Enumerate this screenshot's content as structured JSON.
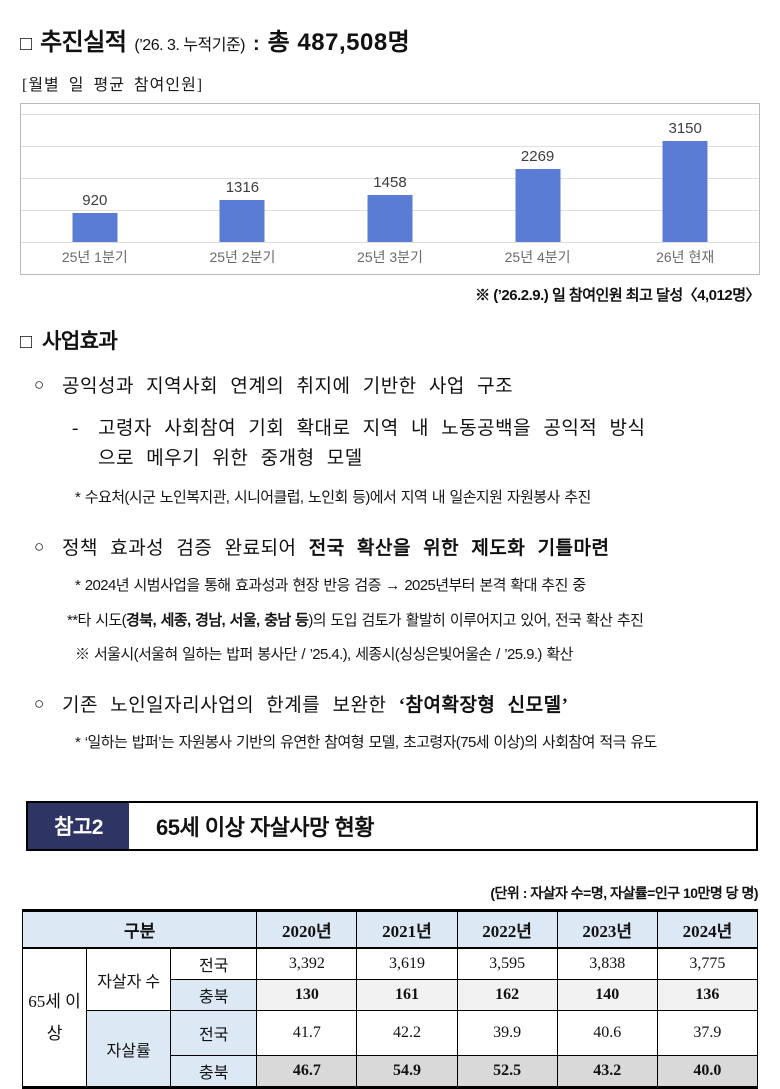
{
  "header": {
    "marker": "□",
    "title": "추진실적",
    "basis": "(’26. 3. 누적기준)",
    "colon": ":",
    "total": "총 487,508명"
  },
  "chart_caption": "[월별 일 평균 참여인원]",
  "chart_data": {
    "type": "bar",
    "title": "월별 일 평균 참여인원",
    "categories": [
      "25년 1분기",
      "25년 2분기",
      "25년 3분기",
      "25년 4분기",
      "26년 현재"
    ],
    "values": [
      920,
      1316,
      1458,
      2269,
      3150
    ],
    "xlabel": "",
    "ylabel": "",
    "ylim": [
      0,
      4000
    ],
    "gridline_step": 1000,
    "grid": "on",
    "legend": "none",
    "bar_color": "#5b7cd4"
  },
  "chart_note": "※  (’26.2.9.) 일 참여인원 최고 달성〈4,012명〉",
  "effects": {
    "marker": "□",
    "heading": "사업효과",
    "bullet1": {
      "marker": "○",
      "text": "공익성과 지역사회 연계의 취지에 기반한 사업 구조"
    },
    "bullet1_sub": {
      "marker": "-",
      "line1": "고령자 사회참여 기회 확대로 지역 내 노동공백을 공익적 방식",
      "line2": "으로 메우기 위한 중개형 모델"
    },
    "bullet1_note": "* 수요처(시군 노인복지관, 시니어클럽, 노인회 등)에서 지역 내 일손지원 자원봉사 추진",
    "bullet2": {
      "marker": "○",
      "text": "정책 효과성 검증 완료되어 ",
      "text_bold": "전국 확산을 위한 제도화 기틀마련"
    },
    "bullet2_note1": "* 2024년 시범사업을 통해 효과성과 현장 반응 검증 → 2025년부터 본격 확대 추진 중",
    "bullet2_note2": {
      "prefix": "**타 시도(",
      "bold": "경북, 세종, 경남, 서울, 충남 등",
      "suffix": ")의 도입 검토가 활발히 이루어지고 있어, 전국 확산 추진"
    },
    "bullet2_note3": "※ 서울시(서울혀 일하는 밥퍼 봉사단 / ’25.4.), 세종시(싱싱은빛어울손 / ’25.9.) 확산",
    "bullet3": {
      "marker": "○",
      "text": "기존 노인일자리사업의 한계를 보완한 ",
      "text_bold": "‘참여확장형 신모델’"
    },
    "bullet3_note": "* ‘일하는 밥퍼’는 자원봉사 기반의 유연한 참여형 모델, 초고령자(75세 이상)의 사회참여 적극 유도"
  },
  "reference": {
    "badge": "참고2",
    "title": "65세 이상 자살사망 현황",
    "badge_bg": "#2e3464"
  },
  "table": {
    "unit_note": "(단위 : 자살자 수=명, 자살률=인구 10만명 당 명)",
    "corner_label": "구분",
    "years": [
      "2020년",
      "2021년",
      "2022년",
      "2023년",
      "2024년"
    ],
    "row_group": "65세 이상",
    "rows": [
      {
        "category": "자살자 수",
        "region": "전국",
        "values": [
          "3,392",
          "3,619",
          "3,595",
          "3,838",
          "3,775"
        ]
      },
      {
        "category": "",
        "region": "충북",
        "values": [
          "130",
          "161",
          "162",
          "140",
          "136"
        ]
      },
      {
        "category": "자살률",
        "region": "전국",
        "values": [
          "41.7",
          "42.2",
          "39.9",
          "40.6",
          "37.9"
        ]
      },
      {
        "category": "",
        "region": "충북",
        "values": [
          "46.7",
          "54.9",
          "52.5",
          "43.2",
          "40.0"
        ]
      }
    ],
    "colors": {
      "header_bg": "#dce9f5",
      "label_bg": "#dce9f5",
      "chungbuk_count_bg": "#f2f2f2",
      "chungbuk_rate_bg": "#d9d9d9"
    }
  }
}
